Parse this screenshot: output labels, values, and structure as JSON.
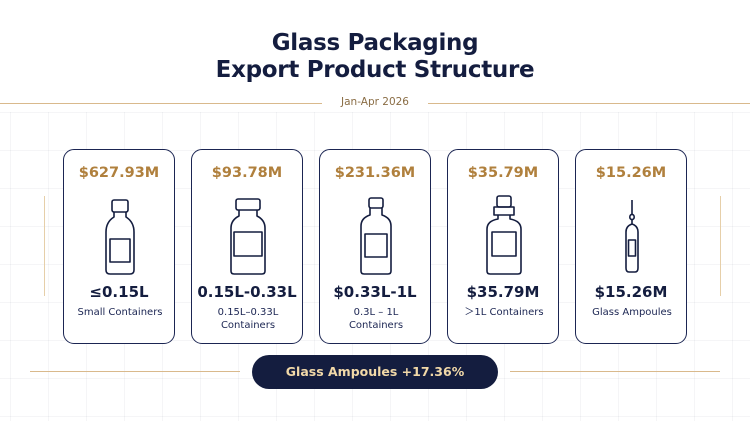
{
  "header": {
    "title_line1": "Glass Packaging",
    "title_line2": "Export Product Structure",
    "period": "Jan-Apr 2026"
  },
  "cards": [
    {
      "value": "$627.93M",
      "size": "≤0.15L",
      "desc": "Small Containers",
      "icon": "small-bottle-icon"
    },
    {
      "value": "$93.78M",
      "size": "0.15L-0.33L",
      "desc": "0.15L–0.33L Containers",
      "icon": "jar-icon"
    },
    {
      "value": "$231.36M",
      "size": "$0.33L-1L",
      "desc": "0.3L –  1L Containers",
      "icon": "medium-bottle-icon"
    },
    {
      "value": "$35.79M",
      "size": "$35.79M",
      "desc": "＞1L Containers",
      "icon": "large-bottle-icon"
    },
    {
      "value": "$15.26M",
      "size": "$15.26M",
      "desc": "Glass Ampoules",
      "icon": "ampoule-icon"
    }
  ],
  "highlight": {
    "label": "Glass Ampoules +17.36%"
  },
  "colors": {
    "navy": "#141d3f",
    "gold": "#b0803d",
    "pill_text": "#f2d9a8",
    "rule": "#d9b98c"
  }
}
